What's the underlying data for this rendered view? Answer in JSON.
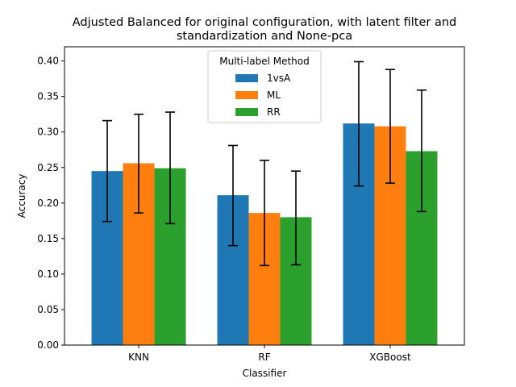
{
  "chart_data": {
    "type": "bar",
    "title_lines": [
      "Adjusted Balanced for original configuration, with latent filter and",
      "standardization and None-pca"
    ],
    "xlabel": "Classifier",
    "ylabel": "Accuracy",
    "categories": [
      "KNN",
      "RF",
      "XGBoost"
    ],
    "ylim": [
      0,
      0.42
    ],
    "yticks": [
      "0.00",
      "0.05",
      "0.10",
      "0.15",
      "0.20",
      "0.25",
      "0.30",
      "0.35",
      "0.40"
    ],
    "grid": false,
    "legend": {
      "title": "Multi-label Method",
      "placement": "top-center"
    },
    "series": [
      {
        "name": "1vsA",
        "color": "#1f77b4",
        "values": [
          0.245,
          0.211,
          0.312
        ],
        "err_low": [
          0.174,
          0.14,
          0.224
        ],
        "err_high": [
          0.316,
          0.281,
          0.399
        ]
      },
      {
        "name": "ML",
        "color": "#ff7f0e",
        "values": [
          0.256,
          0.186,
          0.308
        ],
        "err_low": [
          0.186,
          0.112,
          0.228
        ],
        "err_high": [
          0.325,
          0.26,
          0.388
        ]
      },
      {
        "name": "RR",
        "color": "#2ca02c",
        "values": [
          0.249,
          0.18,
          0.273
        ],
        "err_low": [
          0.171,
          0.113,
          0.188
        ],
        "err_high": [
          0.328,
          0.245,
          0.359
        ]
      }
    ]
  }
}
